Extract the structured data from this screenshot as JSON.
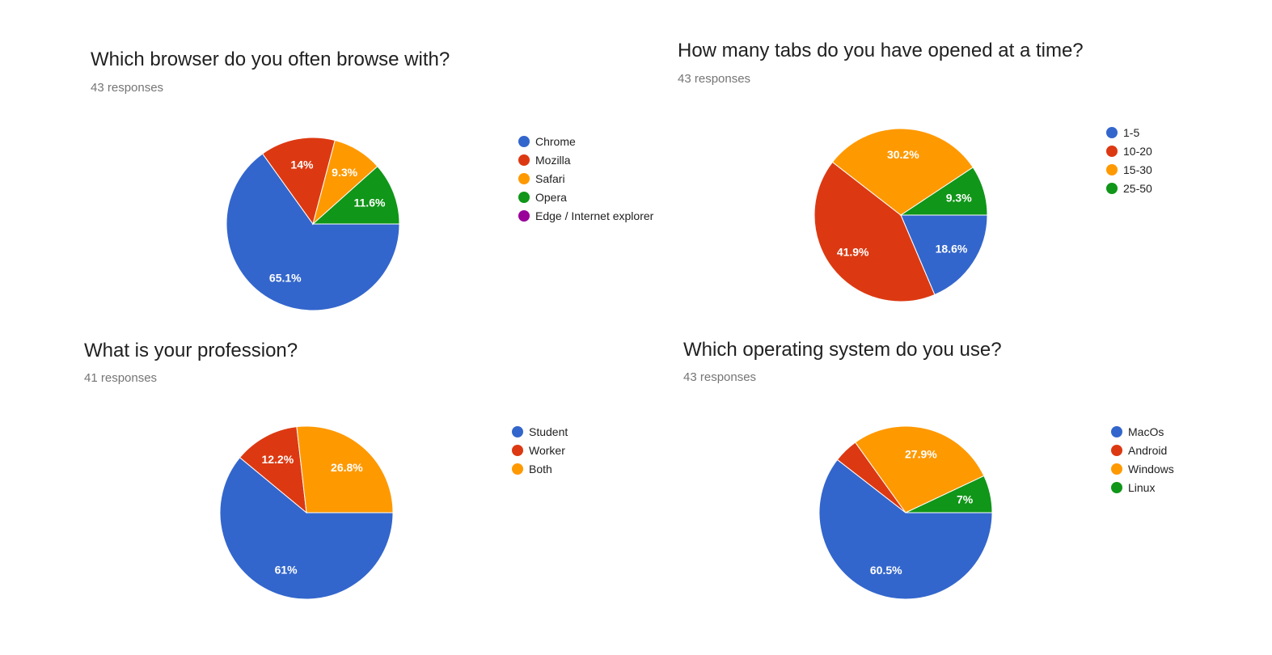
{
  "chart_data": [
    {
      "type": "pie",
      "title": "Which browser do you often browse with?",
      "subtitle": "43 responses",
      "categories": [
        "Chrome",
        "Mozilla",
        "Safari",
        "Opera",
        "Edge / Internet explorer"
      ],
      "values": [
        65.1,
        14,
        9.3,
        11.6,
        0
      ],
      "labels": [
        "65.1%",
        "14%",
        "9.3%",
        "11.6%",
        ""
      ],
      "colors": [
        "#3366cc",
        "#dc3912",
        "#ff9900",
        "#109618",
        "#990099"
      ],
      "legend_position": "right"
    },
    {
      "type": "pie",
      "title": "How many tabs do you have opened at a time?",
      "subtitle": "43 responses",
      "categories": [
        "1-5",
        "10-20",
        "15-30",
        "25-50"
      ],
      "values": [
        18.6,
        41.9,
        30.2,
        9.3
      ],
      "labels": [
        "18.6%",
        "41.9%",
        "30.2%",
        "9.3%"
      ],
      "colors": [
        "#3366cc",
        "#dc3912",
        "#ff9900",
        "#109618"
      ],
      "legend_position": "right"
    },
    {
      "type": "pie",
      "title": "What is your profession?",
      "subtitle": "41 responses",
      "categories": [
        "Student",
        "Worker",
        "Both"
      ],
      "values": [
        61,
        12.2,
        26.8
      ],
      "labels": [
        "61%",
        "12.2%",
        "26.8%"
      ],
      "colors": [
        "#3366cc",
        "#dc3912",
        "#ff9900"
      ],
      "legend_position": "right"
    },
    {
      "type": "pie",
      "title": "Which operating system do you use?",
      "subtitle": "43 responses",
      "categories": [
        "MacOs",
        "Android",
        "Windows",
        "Linux"
      ],
      "values": [
        60.5,
        4.6,
        27.9,
        7
      ],
      "labels": [
        "60.5%",
        "",
        "27.9%",
        "7%"
      ],
      "colors": [
        "#3366cc",
        "#dc3912",
        "#ff9900",
        "#109618"
      ],
      "legend_position": "right"
    }
  ]
}
